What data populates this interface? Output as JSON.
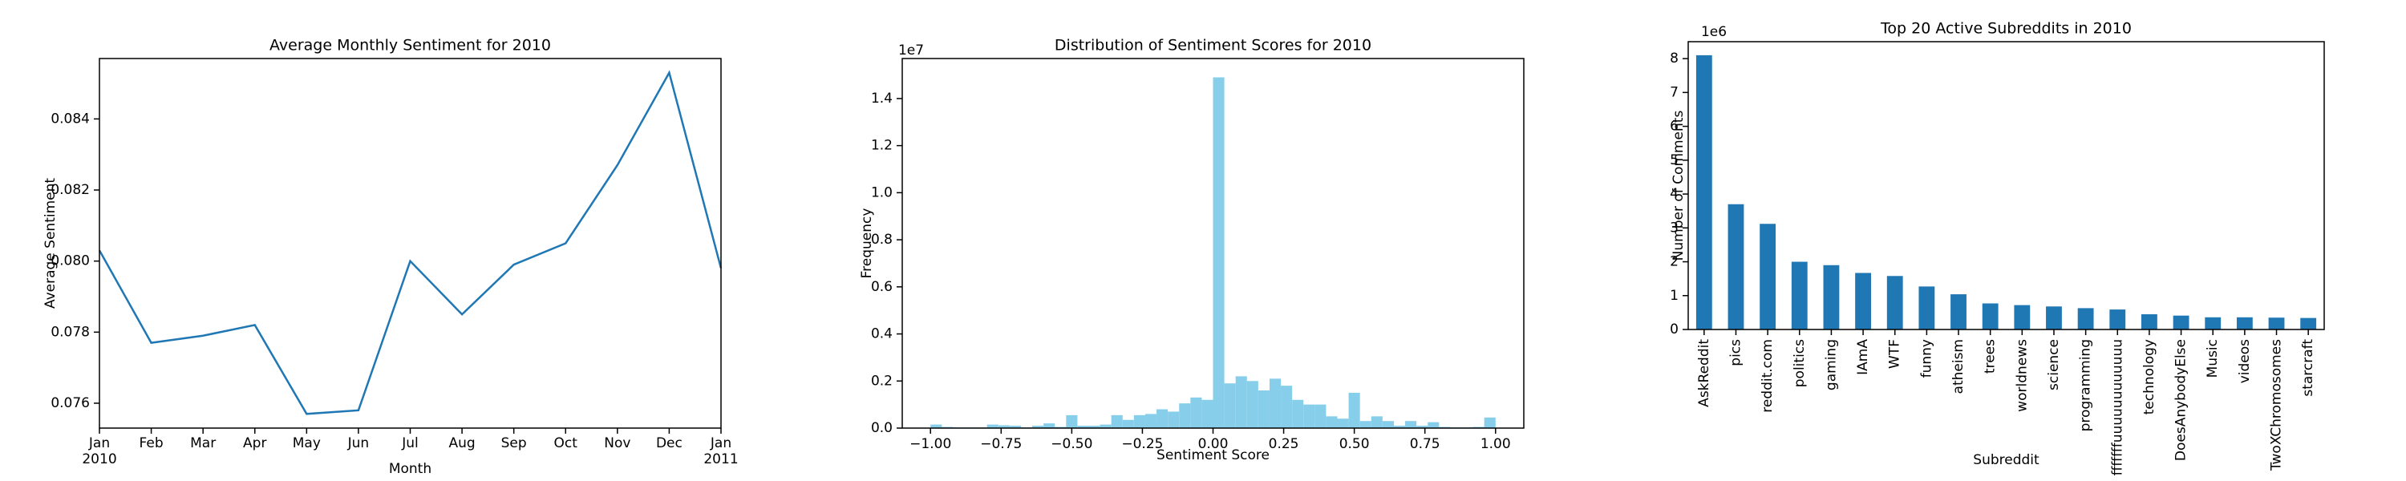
{
  "chart_data": [
    {
      "type": "line",
      "title": "Average Monthly Sentiment for 2010",
      "x_label": "Month",
      "y_label": "Average Sentiment",
      "color": "#1f77b4",
      "x": [
        "2010-01",
        "2010-02",
        "2010-03",
        "2010-04",
        "2010-05",
        "2010-06",
        "2010-07",
        "2010-08",
        "2010-09",
        "2010-10",
        "2010-11",
        "2010-12",
        "2011-01"
      ],
      "values": [
        0.0803,
        0.0777,
        0.0779,
        0.0782,
        0.0757,
        0.0758,
        0.08,
        0.0785,
        0.0799,
        0.0805,
        0.0827,
        0.0853,
        0.0798
      ],
      "xlim": [
        "2010-01",
        "2011-01"
      ],
      "xticks": [
        {
          "value": "2010-01",
          "label": "Jan\n2010"
        },
        {
          "value": "2010-02",
          "label": "Feb"
        },
        {
          "value": "2010-03",
          "label": "Mar"
        },
        {
          "value": "2010-04",
          "label": "Apr"
        },
        {
          "value": "2010-05",
          "label": "May"
        },
        {
          "value": "2010-06",
          "label": "Jun"
        },
        {
          "value": "2010-07",
          "label": "Jul"
        },
        {
          "value": "2010-08",
          "label": "Aug"
        },
        {
          "value": "2010-09",
          "label": "Sep"
        },
        {
          "value": "2010-10",
          "label": "Oct"
        },
        {
          "value": "2010-11",
          "label": "Nov"
        },
        {
          "value": "2010-12",
          "label": "Dec"
        },
        {
          "value": "2011-01",
          "label": "Jan\n2011"
        }
      ],
      "ylim": [
        0.0753,
        0.0857
      ],
      "yticks": [
        0.076,
        0.078,
        {
          "value": 0.08,
          "label": "0.080"
        },
        0.082,
        0.084
      ]
    },
    {
      "type": "histogram",
      "title": "Distribution of Sentiment Scores for 2010",
      "x_label": "Sentiment Score",
      "y_label": "Frequency",
      "y_offset_label": "1e7",
      "color": "#87ceeb",
      "bins": [
        -1.0,
        -0.96,
        -0.92,
        -0.88,
        -0.84,
        -0.8,
        -0.76,
        -0.72,
        -0.68,
        -0.64,
        -0.6,
        -0.56,
        -0.52,
        -0.48,
        -0.44,
        -0.4,
        -0.36,
        -0.32,
        -0.28,
        -0.24,
        -0.2,
        -0.16,
        -0.12,
        -0.08,
        -0.04,
        0,
        0.04,
        0.08,
        0.12,
        0.16,
        0.2,
        0.24,
        0.28,
        0.32,
        0.36,
        0.4,
        0.44,
        0.48,
        0.52,
        0.56,
        0.6,
        0.64,
        0.68,
        0.72,
        0.76,
        0.8,
        0.84,
        0.88,
        0.92,
        0.96,
        1.0
      ],
      "values": [
        0.015,
        0.005,
        0.003,
        0.003,
        0.003,
        0.015,
        0.012,
        0.01,
        0.003,
        0.01,
        0.02,
        0.005,
        0.055,
        0.01,
        0.01,
        0.015,
        0.055,
        0.035,
        0.055,
        0.06,
        0.08,
        0.07,
        0.105,
        0.13,
        0.12,
        1.49,
        0.19,
        0.22,
        0.2,
        0.16,
        0.21,
        0.18,
        0.12,
        0.1,
        0.1,
        0.05,
        0.04,
        0.15,
        0.03,
        0.05,
        0.03,
        0.01,
        0.03,
        0.01,
        0.025,
        0.005,
        0.003,
        0.003,
        0.005,
        0.045
      ],
      "xlim": [
        -1.1,
        1.1
      ],
      "xticks": [
        {
          "value": -1,
          "label": "−1.00"
        },
        {
          "value": -0.75,
          "label": "−0.75"
        },
        {
          "value": -0.5,
          "label": "−0.50"
        },
        {
          "value": -0.25,
          "label": "−0.25"
        },
        {
          "value": 0,
          "label": "0.00"
        },
        {
          "value": 0.25,
          "label": "0.25"
        },
        {
          "value": 0.5,
          "label": "0.50"
        },
        {
          "value": 0.75,
          "label": "0.75"
        },
        {
          "value": 1,
          "label": "1.00"
        }
      ],
      "ylim": [
        0,
        1.57
      ],
      "yticks": [
        {
          "value": 0,
          "label": "0.0"
        },
        0.2,
        0.4,
        0.6,
        0.8,
        {
          "value": 1,
          "label": "1.0"
        },
        1.2,
        1.4
      ]
    },
    {
      "type": "bar",
      "title": "Top 20 Active Subreddits in 2010",
      "x_label": "Subreddit",
      "y_label": "Number of Comments",
      "y_offset_label": "1e6",
      "color": "#1f77b4",
      "categories": [
        "AskReddit",
        "pics",
        "reddit.com",
        "politics",
        "gaming",
        "IAmA",
        "WTF",
        "funny",
        "atheism",
        "trees",
        "worldnews",
        "science",
        "programming",
        "fffffffuuuuuuuuuuuu",
        "technology",
        "DoesAnybodyElse",
        "Music",
        "videos",
        "TwoXChromosomes",
        "starcraft"
      ],
      "values": [
        8.1,
        3.7,
        3.12,
        2.0,
        1.9,
        1.67,
        1.58,
        1.27,
        1.04,
        0.77,
        0.72,
        0.68,
        0.63,
        0.59,
        0.45,
        0.41,
        0.36,
        0.36,
        0.35,
        0.34
      ],
      "ylim": [
        0,
        8.5
      ],
      "yticks": [
        0,
        1,
        2,
        3,
        4,
        5,
        6,
        7,
        8
      ]
    }
  ]
}
